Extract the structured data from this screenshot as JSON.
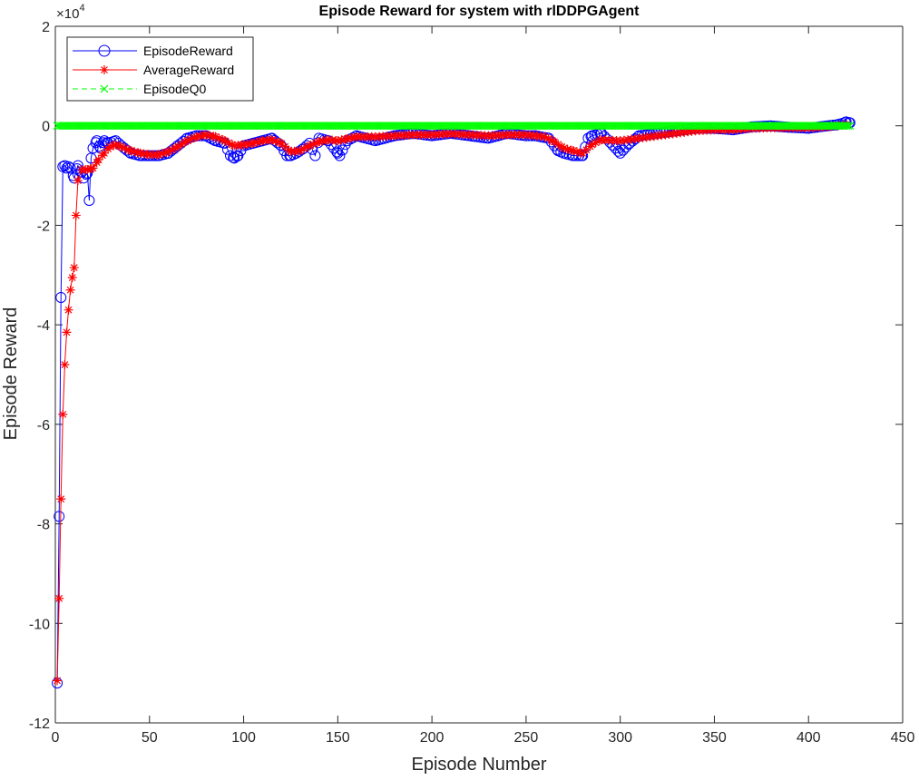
{
  "chart_data": {
    "type": "line",
    "title": "Episode Reward for system with rlDDPGAgent",
    "xlabel": "Episode Number",
    "ylabel": "Episode Reward",
    "y_exponent_label": "×10",
    "y_exponent_power": "4",
    "xlim": [
      0,
      450
    ],
    "ylim": [
      -12,
      2
    ],
    "x_ticks": [
      0,
      50,
      100,
      150,
      200,
      250,
      300,
      350,
      400,
      450
    ],
    "x_tick_labels": [
      "0",
      "50",
      "100",
      "150",
      "200",
      "250",
      "300",
      "350",
      "400",
      "450"
    ],
    "y_ticks": [
      -12,
      -10,
      -8,
      -6,
      -4,
      -2,
      0,
      2
    ],
    "y_tick_labels": [
      "-12",
      "-10",
      "-8",
      "-6",
      "-4",
      "-2",
      "0",
      "2"
    ],
    "grid": false,
    "legend_position": "top-left",
    "series": [
      {
        "name": "EpisodeReward",
        "color": "#0000ff",
        "marker": "circle",
        "line_style": "solid",
        "points": [
          [
            1,
            -11.2
          ],
          [
            2,
            -7.85
          ],
          [
            3,
            -3.45
          ],
          [
            4,
            -0.82
          ],
          [
            5,
            -0.8
          ],
          [
            6,
            -0.85
          ],
          [
            7,
            -0.82
          ],
          [
            8,
            -0.85
          ],
          [
            10,
            -1.05
          ],
          [
            12,
            -0.8
          ],
          [
            15,
            -1.05
          ],
          [
            17,
            -0.95
          ],
          [
            18,
            -1.5
          ],
          [
            19,
            -0.65
          ],
          [
            20,
            -0.45
          ],
          [
            22,
            -0.3
          ],
          [
            24,
            -0.45
          ],
          [
            26,
            -0.3
          ],
          [
            28,
            -0.35
          ],
          [
            32,
            -0.3
          ],
          [
            35,
            -0.4
          ],
          [
            40,
            -0.55
          ],
          [
            45,
            -0.6
          ],
          [
            50,
            -0.6
          ],
          [
            55,
            -0.6
          ],
          [
            60,
            -0.55
          ],
          [
            65,
            -0.4
          ],
          [
            70,
            -0.25
          ],
          [
            75,
            -0.2
          ],
          [
            80,
            -0.2
          ],
          [
            85,
            -0.3
          ],
          [
            90,
            -0.35
          ],
          [
            93,
            -0.6
          ],
          [
            95,
            -0.65
          ],
          [
            97,
            -0.6
          ],
          [
            100,
            -0.4
          ],
          [
            105,
            -0.35
          ],
          [
            110,
            -0.3
          ],
          [
            115,
            -0.25
          ],
          [
            120,
            -0.4
          ],
          [
            123,
            -0.6
          ],
          [
            125,
            -0.6
          ],
          [
            128,
            -0.55
          ],
          [
            132,
            -0.45
          ],
          [
            135,
            -0.35
          ],
          [
            138,
            -0.6
          ],
          [
            140,
            -0.25
          ],
          [
            145,
            -0.3
          ],
          [
            150,
            -0.55
          ],
          [
            151,
            -0.6
          ],
          [
            155,
            -0.3
          ],
          [
            160,
            -0.2
          ],
          [
            170,
            -0.3
          ],
          [
            180,
            -0.2
          ],
          [
            190,
            -0.15
          ],
          [
            200,
            -0.2
          ],
          [
            210,
            -0.15
          ],
          [
            220,
            -0.2
          ],
          [
            230,
            -0.25
          ],
          [
            240,
            -0.15
          ],
          [
            250,
            -0.2
          ],
          [
            255,
            -0.2
          ],
          [
            262,
            -0.25
          ],
          [
            267,
            -0.5
          ],
          [
            270,
            -0.55
          ],
          [
            275,
            -0.6
          ],
          [
            280,
            -0.6
          ],
          [
            283,
            -0.25
          ],
          [
            285,
            -0.2
          ],
          [
            290,
            -0.15
          ],
          [
            300,
            -0.55
          ],
          [
            305,
            -0.35
          ],
          [
            310,
            -0.2
          ],
          [
            320,
            -0.15
          ],
          [
            330,
            -0.1
          ],
          [
            340,
            -0.05
          ],
          [
            350,
            -0.05
          ],
          [
            360,
            -0.08
          ],
          [
            370,
            -0.02
          ],
          [
            380,
            0.0
          ],
          [
            390,
            -0.03
          ],
          [
            400,
            -0.05
          ],
          [
            410,
            0.0
          ],
          [
            415,
            0.02
          ],
          [
            418,
            0.05
          ],
          [
            420,
            0.08
          ],
          [
            422,
            0.06
          ]
        ]
      },
      {
        "name": "AverageReward",
        "color": "#ff0000",
        "marker": "asterisk",
        "line_style": "solid",
        "points": [
          [
            1,
            -11.15
          ],
          [
            2,
            -9.5
          ],
          [
            3,
            -7.5
          ],
          [
            4,
            -5.8
          ],
          [
            5,
            -4.8
          ],
          [
            6,
            -4.15
          ],
          [
            7,
            -3.7
          ],
          [
            8,
            -3.3
          ],
          [
            9,
            -3.05
          ],
          [
            10,
            -2.85
          ],
          [
            11,
            -1.8
          ],
          [
            12,
            -1.1
          ],
          [
            14,
            -0.88
          ],
          [
            17,
            -0.88
          ],
          [
            20,
            -0.85
          ],
          [
            23,
            -0.68
          ],
          [
            26,
            -0.55
          ],
          [
            29,
            -0.42
          ],
          [
            32,
            -0.38
          ],
          [
            35,
            -0.42
          ],
          [
            40,
            -0.5
          ],
          [
            45,
            -0.55
          ],
          [
            50,
            -0.58
          ],
          [
            55,
            -0.58
          ],
          [
            60,
            -0.52
          ],
          [
            65,
            -0.42
          ],
          [
            70,
            -0.3
          ],
          [
            75,
            -0.22
          ],
          [
            80,
            -0.18
          ],
          [
            85,
            -0.22
          ],
          [
            90,
            -0.3
          ],
          [
            95,
            -0.4
          ],
          [
            100,
            -0.38
          ],
          [
            105,
            -0.35
          ],
          [
            110,
            -0.3
          ],
          [
            115,
            -0.28
          ],
          [
            120,
            -0.35
          ],
          [
            125,
            -0.52
          ],
          [
            130,
            -0.5
          ],
          [
            135,
            -0.4
          ],
          [
            140,
            -0.32
          ],
          [
            145,
            -0.28
          ],
          [
            150,
            -0.3
          ],
          [
            155,
            -0.26
          ],
          [
            160,
            -0.22
          ],
          [
            170,
            -0.22
          ],
          [
            180,
            -0.2
          ],
          [
            190,
            -0.18
          ],
          [
            200,
            -0.18
          ],
          [
            210,
            -0.16
          ],
          [
            220,
            -0.18
          ],
          [
            230,
            -0.2
          ],
          [
            240,
            -0.18
          ],
          [
            250,
            -0.18
          ],
          [
            260,
            -0.22
          ],
          [
            265,
            -0.32
          ],
          [
            270,
            -0.45
          ],
          [
            275,
            -0.5
          ],
          [
            280,
            -0.55
          ],
          [
            285,
            -0.38
          ],
          [
            290,
            -0.28
          ],
          [
            300,
            -0.3
          ],
          [
            310,
            -0.25
          ],
          [
            320,
            -0.2
          ],
          [
            330,
            -0.15
          ],
          [
            340,
            -0.1
          ],
          [
            350,
            -0.08
          ],
          [
            360,
            -0.08
          ],
          [
            370,
            -0.05
          ],
          [
            380,
            -0.04
          ],
          [
            390,
            -0.04
          ],
          [
            400,
            -0.04
          ],
          [
            410,
            -0.02
          ],
          [
            420,
            0.02
          ]
        ]
      },
      {
        "name": "EpisodeQ0",
        "color": "#00ff00",
        "marker": "x",
        "line_style": "dashed",
        "points": [
          [
            1,
            0.0
          ],
          [
            422,
            0.0
          ]
        ]
      }
    ]
  }
}
